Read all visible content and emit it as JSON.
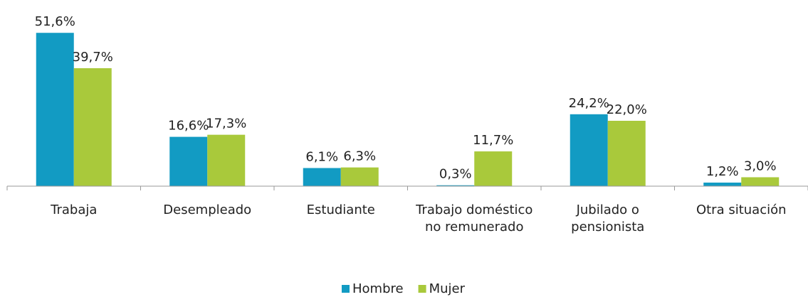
{
  "chart_data": {
    "type": "bar",
    "categories": [
      "Trabaja",
      "Desempleado",
      "Estudiante",
      "Trabajo doméstico no remunerado",
      "Jubilado o pensionista",
      "Otra situación"
    ],
    "series": [
      {
        "name": "Hombre",
        "color": "#129bc3",
        "values": [
          51.6,
          16.6,
          6.1,
          0.3,
          24.2,
          1.2
        ],
        "value_labels": [
          "51,6%",
          "16,6%",
          "6,1%",
          "0,3%",
          "24,2%",
          "1,2%"
        ]
      },
      {
        "name": "Mujer",
        "color": "#a9c93b",
        "values": [
          39.7,
          17.3,
          6.3,
          11.7,
          22.0,
          3.0
        ],
        "value_labels": [
          "39,7%",
          "17,3%",
          "6,3%",
          "11,7%",
          "22,0%",
          "3,0%"
        ]
      }
    ],
    "ylim": [
      0,
      55
    ],
    "grid": false,
    "legend": "bottom"
  }
}
